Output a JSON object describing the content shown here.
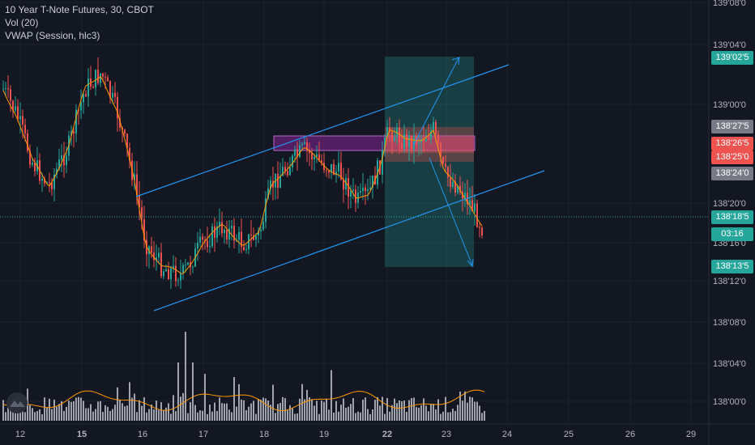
{
  "legend": {
    "title": "10 Year T-Note Futures, 30, CBOT",
    "vol": "Vol (20)",
    "vwap": "VWAP (Session, hlc3)"
  },
  "chart_data": {
    "type": "candlestick",
    "symbol": "10 Year T-Note Futures",
    "interval": "30",
    "exchange": "CBOT",
    "price_axis_ticks": [
      "139'08'0",
      "139'04'0",
      "139'00'0",
      "138'20'0",
      "138'16'0",
      "138'12'0",
      "138'08'0",
      "138'04'0",
      "138'00'0"
    ],
    "date_axis_ticks": [
      "12",
      "15",
      "16",
      "17",
      "18",
      "19",
      "22",
      "23",
      "24",
      "25",
      "26",
      "29"
    ],
    "price_tags": [
      {
        "label": "139'02'5",
        "color": "#26a69a"
      },
      {
        "label": "138'27'5",
        "color": "#787b86"
      },
      {
        "label": "138'26'5",
        "color": "#ef5350"
      },
      {
        "label": "138'25'0",
        "color": "#ef5350"
      },
      {
        "label": "138'24'0",
        "color": "#787b86"
      },
      {
        "label": "138'18'5",
        "color": "#26a69a"
      },
      {
        "label": "03:16",
        "color": "#26a69a"
      },
      {
        "label": "138'13'5",
        "color": "#26a69a"
      }
    ],
    "last_price": "138'18'5",
    "countdown": "03:16",
    "series": [
      {
        "name": "Vol (20)"
      },
      {
        "name": "VWAP (Session, hlc3)"
      }
    ],
    "drawings": {
      "parallel_channel": "ascending",
      "range_box": "green",
      "resistance_zone": "138'26'5 – 138'25'0"
    }
  }
}
